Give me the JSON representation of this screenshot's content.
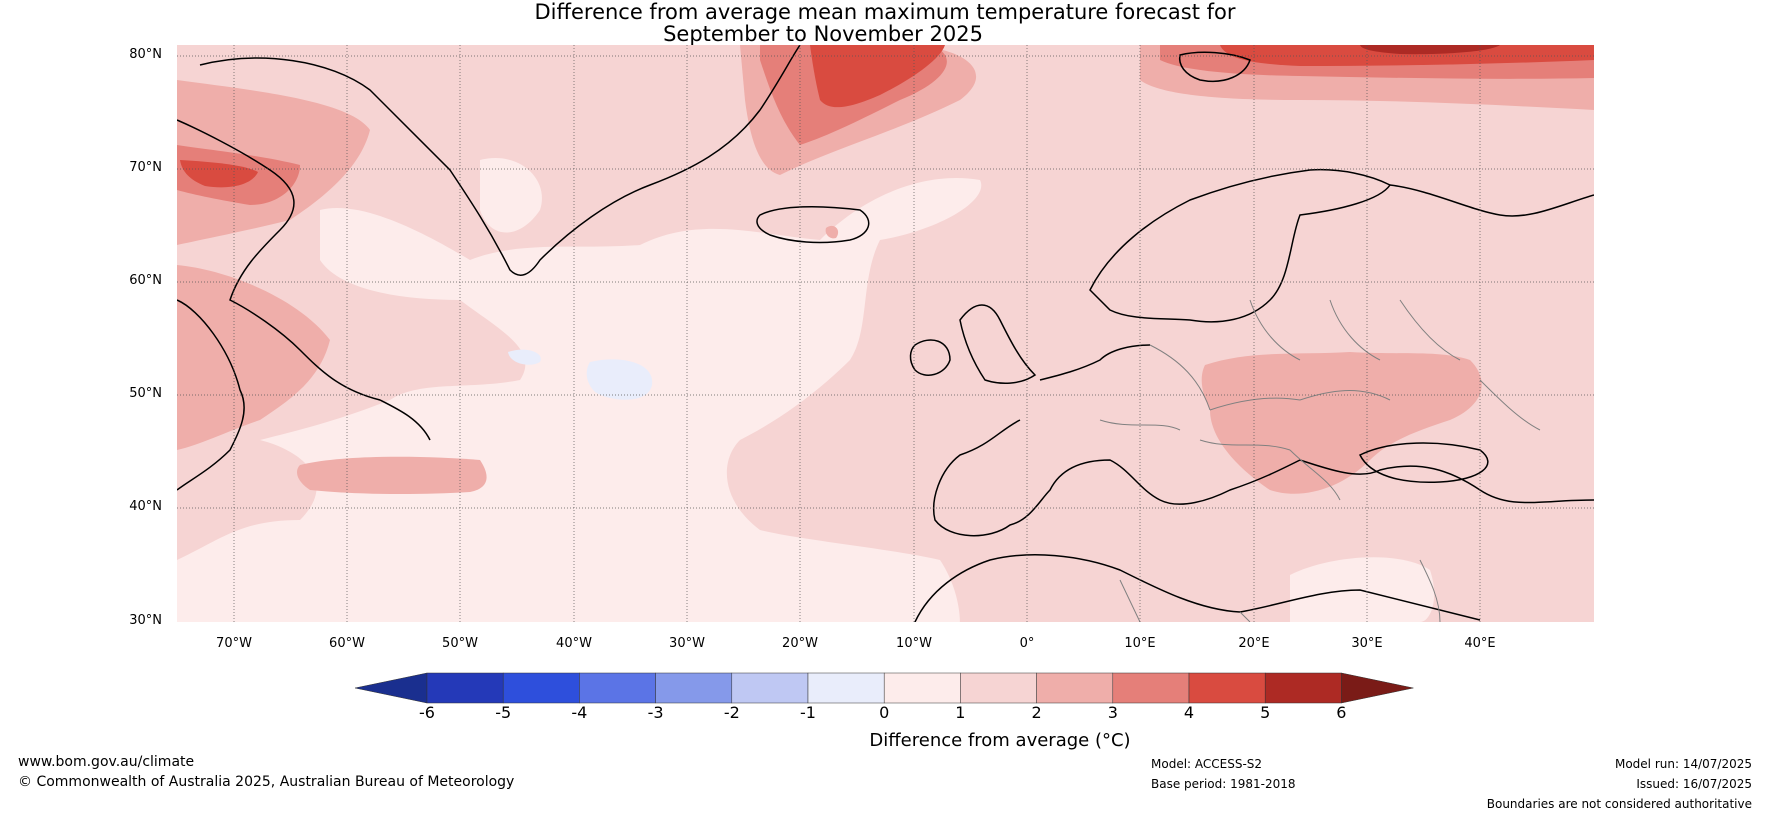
{
  "header": {
    "title_line1": "Difference from average mean maximum temperature forecast for",
    "title_line2": "September to November 2025"
  },
  "map": {
    "region": "North Atlantic and Europe",
    "latitude_labels": [
      "80°N",
      "70°N",
      "60°N",
      "50°N",
      "40°N",
      "30°N"
    ],
    "longitude_labels": [
      "70°W",
      "60°W",
      "50°W",
      "40°W",
      "30°W",
      "20°W",
      "10°W",
      "0°",
      "10°E",
      "20°E",
      "30°E",
      "40°E"
    ],
    "lat_range": [
      30,
      81
    ],
    "lon_range": [
      -75,
      50
    ],
    "colors": {
      "land_outline": "#000000",
      "borders": "#808080",
      "gridlines": "#555555"
    }
  },
  "colorbar": {
    "label": "Difference from average (°C)",
    "ticks": [
      "-6",
      "-5",
      "-4",
      "-3",
      "-2",
      "-1",
      "0",
      "1",
      "2",
      "3",
      "4",
      "5",
      "6"
    ],
    "colors": [
      "#1a2f8f",
      "#2439b8",
      "#2e4fdc",
      "#5b74e6",
      "#8599ea",
      "#bfc8f3",
      "#e9edfb",
      "#fdeceb",
      "#f6d4d3",
      "#efaeaa",
      "#e57f79",
      "#d94b40",
      "#ad2a24",
      "#7a1b17"
    ]
  },
  "footer": {
    "website": "www.bom.gov.au/climate",
    "copyright": "© Commonwealth of Australia 2025, Australian Bureau of Meteorology",
    "model": "Model: ACCESS-S2",
    "base_period": "Base period: 1981-2018",
    "model_run": "Model run: 14/07/2025",
    "issued": "Issued: 16/07/2025",
    "disclaimer": "Boundaries are not considered authoritative"
  }
}
